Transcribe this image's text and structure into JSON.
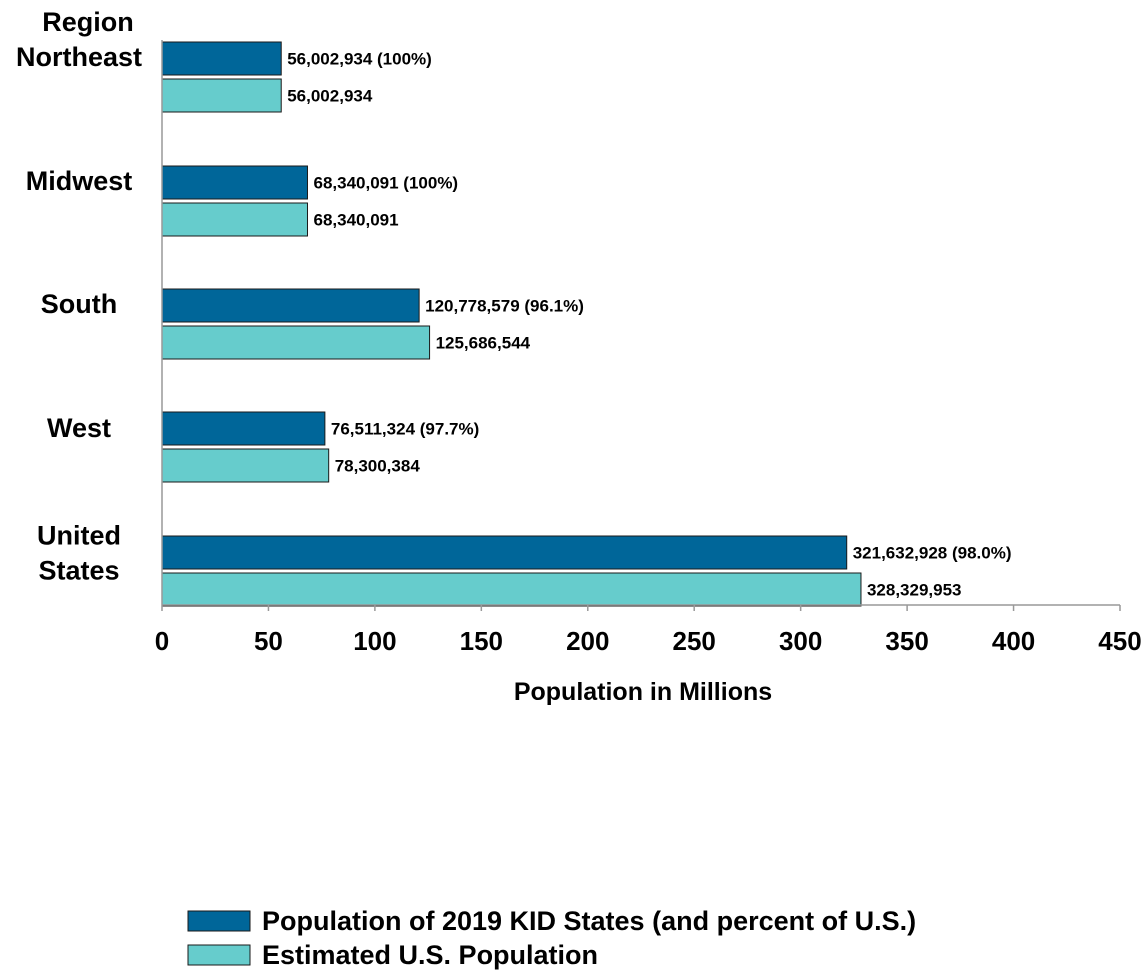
{
  "chart_data": {
    "type": "bar",
    "orientation": "horizontal",
    "category_axis_title": "Region",
    "categories": [
      "Northeast",
      "Midwest",
      "South",
      "West",
      "United States"
    ],
    "category_display": [
      [
        "Northeast"
      ],
      [
        "Midwest"
      ],
      [
        "South"
      ],
      [
        "West"
      ],
      [
        "United",
        "States"
      ]
    ],
    "series": [
      {
        "name": "Population of 2019 KID States (and percent of U.S.)",
        "color": "#006699",
        "values": [
          56.002934,
          68.340091,
          120.778579,
          76.511324,
          321.632928
        ],
        "data_labels": [
          "56,002,934 (100%)",
          "68,340,091 (100%)",
          "120,778,579 (96.1%)",
          "76,511,324 (97.7%)",
          "321,632,928 (98.0%)"
        ]
      },
      {
        "name": "Estimated U.S. Population",
        "color": "#66CCCC",
        "values": [
          56.002934,
          68.340091,
          125.686544,
          78.300384,
          328.329953
        ],
        "data_labels": [
          "56,002,934",
          "68,340,091",
          "125,686,544",
          "78,300,384",
          "328,329,953"
        ]
      }
    ],
    "xlabel": "Population in Millions",
    "xlim": [
      0,
      450
    ],
    "xticks": [
      0,
      50,
      100,
      150,
      200,
      250,
      300,
      350,
      400,
      450
    ],
    "grid": false,
    "legend_position": "bottom"
  }
}
